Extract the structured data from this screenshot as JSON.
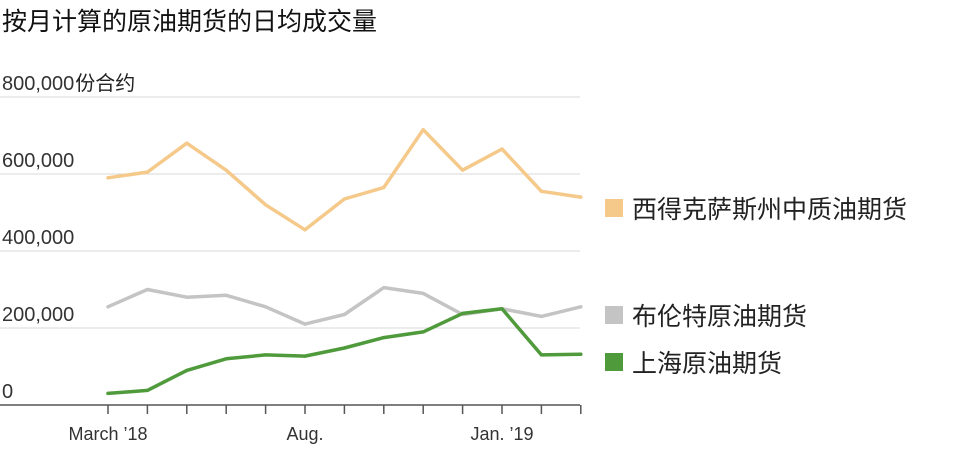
{
  "chart_data": {
    "type": "line",
    "title": "按月计算的原油期货的日均成交量",
    "ylabel": "份合约",
    "ylim": [
      0,
      800000
    ],
    "yticks": [
      {
        "value": 800000,
        "label": "800,000"
      },
      {
        "value": 600000,
        "label": "600,000"
      },
      {
        "value": 400000,
        "label": "400,000"
      },
      {
        "value": 200000,
        "label": "200,000"
      },
      {
        "value": 0,
        "label": "0"
      }
    ],
    "x": [
      "2018-03",
      "2018-04",
      "2018-05",
      "2018-06",
      "2018-07",
      "2018-08",
      "2018-09",
      "2018-10",
      "2018-11",
      "2018-12",
      "2019-01",
      "2019-02",
      "2019-03"
    ],
    "xtick_labels": [
      {
        "index": 0,
        "label": "March ’18"
      },
      {
        "index": 5,
        "label": "Aug."
      },
      {
        "index": 10,
        "label": "Jan. ’19"
      }
    ],
    "grid": true,
    "legend_position": "right",
    "series": [
      {
        "name": "西得克萨斯州中质油期货",
        "color": "#f5c98a",
        "values": [
          590000,
          605000,
          680000,
          610000,
          520000,
          455000,
          535000,
          565000,
          715000,
          610000,
          665000,
          555000,
          540000
        ]
      },
      {
        "name": "布伦特原油期货",
        "color": "#c4c4c4",
        "values": [
          255000,
          300000,
          280000,
          285000,
          255000,
          210000,
          235000,
          305000,
          290000,
          235000,
          250000,
          230000,
          255000
        ]
      },
      {
        "name": "上海原油期货",
        "color": "#4f9a3b",
        "values": [
          30000,
          38000,
          90000,
          120000,
          130000,
          127000,
          148000,
          175000,
          190000,
          238000,
          250000,
          130000,
          132000
        ]
      }
    ]
  }
}
